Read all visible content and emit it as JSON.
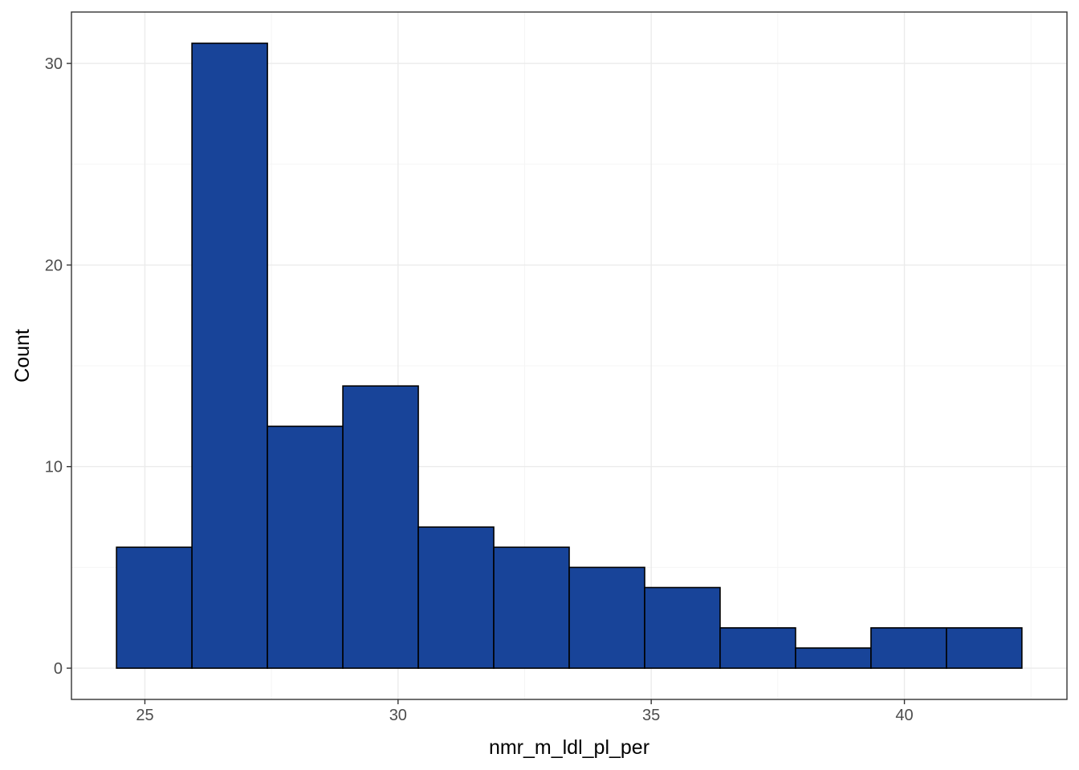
{
  "chart_data": {
    "type": "bar",
    "title": "",
    "xlabel": "nmr_m_ldl_pl_per",
    "ylabel": "Count",
    "bins": [
      {
        "x0": 24.44,
        "x1": 25.93,
        "count": 6
      },
      {
        "x0": 25.93,
        "x1": 27.42,
        "count": 31
      },
      {
        "x0": 27.42,
        "x1": 28.91,
        "count": 12
      },
      {
        "x0": 28.91,
        "x1": 30.4,
        "count": 14
      },
      {
        "x0": 30.4,
        "x1": 31.89,
        "count": 7
      },
      {
        "x0": 31.89,
        "x1": 33.38,
        "count": 6
      },
      {
        "x0": 33.38,
        "x1": 34.87,
        "count": 5
      },
      {
        "x0": 34.87,
        "x1": 36.36,
        "count": 4
      },
      {
        "x0": 36.36,
        "x1": 37.85,
        "count": 2
      },
      {
        "x0": 37.85,
        "x1": 39.34,
        "count": 1
      },
      {
        "x0": 39.34,
        "x1": 40.83,
        "count": 2
      },
      {
        "x0": 40.83,
        "x1": 42.32,
        "count": 2
      }
    ],
    "xlim": [
      23.55,
      43.21
    ],
    "ylim": [
      -1.55,
      32.55
    ],
    "x_ticks": [
      25,
      30,
      35,
      40
    ],
    "x_minor_ticks": [
      22.5,
      27.5,
      32.5,
      37.5,
      42.5
    ],
    "y_ticks": [
      0,
      10,
      20,
      30
    ],
    "y_minor_ticks": [
      5,
      15,
      25
    ],
    "grid": true,
    "legend": "none",
    "colors": {
      "bar_fill": "#184499",
      "bar_outline": "#000000",
      "grid_major": "#ebebeb",
      "grid_minor": "#f5f5f5",
      "panel_border": "#333333",
      "tick_label": "#4d4d4d",
      "axis_title": "#000000"
    }
  }
}
